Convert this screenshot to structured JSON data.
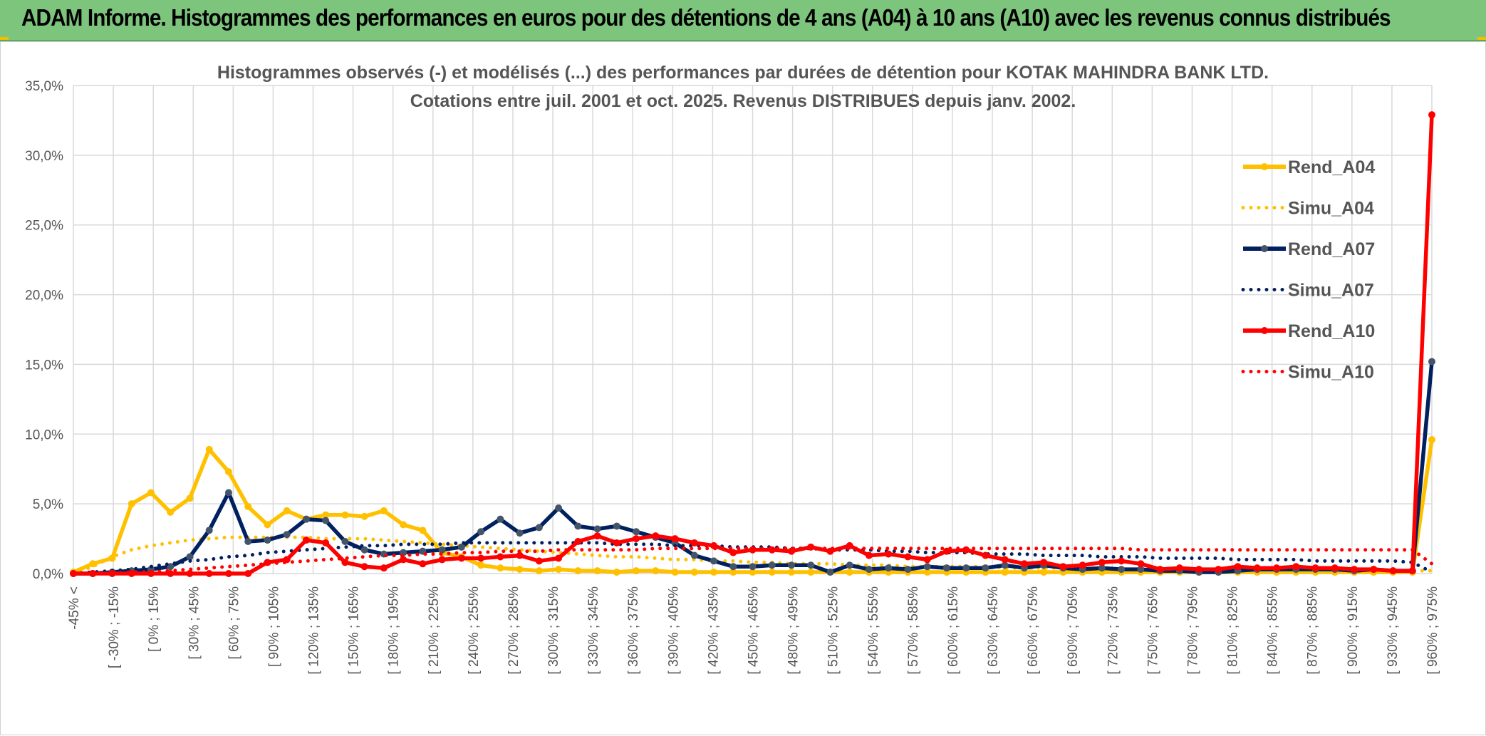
{
  "header": {
    "title": "ADAM Informe. Histogrammes des performances en euros pour des détentions de 4 ans (A04) à 10 ans (A10) avec les revenus connus distribués"
  },
  "chart_data": {
    "type": "line",
    "title": "Histogrammes observés (-) et modélisés (...) des performances par durées de détention pour KOTAK MAHINDRA BANK LTD.",
    "subtitle": "Cotations entre juil. 2001 et oct. 2025. Revenus DISTRIBUES depuis janv. 2002.",
    "ylim": [
      0,
      35
    ],
    "yticks": [
      "0,0%",
      "5,0%",
      "10,0%",
      "15,0%",
      "20,0%",
      "25,0%",
      "30,0%",
      "35,0%"
    ],
    "y_format": "percent",
    "grid": true,
    "legend_position": "right",
    "x_labels": [
      "-45% <",
      "[ -30% ; -15%",
      "[ 0% ; 15%",
      "[ 30% ; 45%",
      "[ 60% ; 75%",
      "[ 90% ; 105%",
      "[ 120% ; 135%",
      "[ 150% ; 165%",
      "[ 180% ; 195%",
      "[ 210% ; 225%",
      "[ 240% ; 255%",
      "[ 270% ; 285%",
      "[ 300% ; 315%",
      "[ 330% ; 345%",
      "[ 360% ; 375%",
      "[ 390% ; 405%",
      "[ 420% ; 435%",
      "[ 450% ; 465%",
      "[ 480% ; 495%",
      "[ 510% ; 525%",
      "[ 540% ; 555%",
      "[ 570% ; 585%",
      "[ 600% ; 615%",
      "[ 630% ; 645%",
      "[ 660% ; 675%",
      "[ 690% ; 705%",
      "[ 720% ; 735%",
      "[ 750% ; 765%",
      "[ 780% ; 795%",
      "[ 810% ; 825%",
      "[ 840% ; 855%",
      "[ 870% ; 885%",
      "[ 900% ; 915%",
      "[ 930% ; 945%",
      "[ 960% ; 975%"
    ],
    "series": [
      {
        "name": "Rend_A04",
        "style": "solid",
        "color": "#FFC000",
        "values": [
          0.1,
          0.7,
          1.1,
          5.0,
          5.8,
          4.4,
          5.4,
          8.9,
          7.3,
          4.8,
          3.5,
          4.5,
          3.9,
          4.2,
          4.2,
          4.1,
          4.5,
          3.5,
          3.1,
          1.5,
          1.2,
          0.6,
          0.4,
          0.3,
          0.2,
          0.3,
          0.2,
          0.2,
          0.1,
          0.2,
          0.2,
          0.1,
          0.1,
          0.1,
          0.1,
          0.1,
          0.1,
          0.1,
          0.1,
          0.1,
          0.1,
          0.1,
          0.1,
          0.1,
          0.1,
          0.1,
          0.1,
          0.1,
          0.1,
          0.1,
          0.1,
          0.1,
          0.1,
          0.1,
          0.1,
          0.1,
          0.1,
          0.1,
          0.1,
          0.1,
          0.1,
          0.1,
          0.1,
          0.1,
          0.1,
          0.1,
          0.1,
          0.1,
          0.1,
          0.1,
          9.6
        ]
      },
      {
        "name": "Simu_A04",
        "style": "dotted",
        "color": "#FFC000",
        "values": [
          0.0,
          0.5,
          1.2,
          1.7,
          2.0,
          2.2,
          2.4,
          2.5,
          2.6,
          2.6,
          2.6,
          2.6,
          2.6,
          2.5,
          2.5,
          2.5,
          2.4,
          2.3,
          2.2,
          2.1,
          2.0,
          1.9,
          1.8,
          1.7,
          1.6,
          1.5,
          1.4,
          1.3,
          1.2,
          1.2,
          1.1,
          1.0,
          1.0,
          0.9,
          0.9,
          0.8,
          0.8,
          0.7,
          0.7,
          0.7,
          0.6,
          0.6,
          0.6,
          0.5,
          0.5,
          0.5,
          0.5,
          0.5,
          0.4,
          0.4,
          0.4,
          0.4,
          0.4,
          0.4,
          0.3,
          0.3,
          0.3,
          0.3,
          0.3,
          0.3,
          0.3,
          0.3,
          0.3,
          0.3,
          0.3,
          0.2,
          0.2,
          0.2,
          0.2,
          0.2,
          0.2
        ]
      },
      {
        "name": "Rend_A07",
        "style": "solid",
        "color": "#002060",
        "values": [
          0.0,
          0.0,
          0.1,
          0.2,
          0.3,
          0.5,
          1.2,
          3.1,
          5.8,
          2.3,
          2.4,
          2.8,
          3.9,
          3.8,
          2.3,
          1.7,
          1.4,
          1.5,
          1.6,
          1.7,
          1.9,
          3.0,
          3.9,
          2.9,
          3.3,
          4.7,
          3.4,
          3.2,
          3.4,
          3.0,
          2.6,
          2.2,
          1.3,
          0.9,
          0.5,
          0.5,
          0.6,
          0.6,
          0.6,
          0.1,
          0.6,
          0.3,
          0.4,
          0.3,
          0.5,
          0.4,
          0.4,
          0.4,
          0.6,
          0.4,
          0.6,
          0.4,
          0.3,
          0.4,
          0.3,
          0.3,
          0.2,
          0.2,
          0.1,
          0.1,
          0.2,
          0.3,
          0.3,
          0.3,
          0.3,
          0.3,
          0.2,
          0.3,
          0.2,
          0.2,
          15.2
        ]
      },
      {
        "name": "Simu_A07",
        "style": "dotted",
        "color": "#002060",
        "values": [
          0.0,
          0.1,
          0.2,
          0.3,
          0.5,
          0.7,
          0.9,
          1.0,
          1.2,
          1.3,
          1.5,
          1.6,
          1.7,
          1.8,
          1.9,
          2.0,
          2.0,
          2.1,
          2.1,
          2.1,
          2.2,
          2.2,
          2.2,
          2.2,
          2.2,
          2.2,
          2.2,
          2.2,
          2.1,
          2.1,
          2.1,
          2.0,
          2.0,
          2.0,
          1.9,
          1.9,
          1.9,
          1.8,
          1.8,
          1.7,
          1.7,
          1.7,
          1.6,
          1.6,
          1.5,
          1.5,
          1.5,
          1.4,
          1.4,
          1.4,
          1.3,
          1.3,
          1.3,
          1.2,
          1.2,
          1.2,
          1.1,
          1.1,
          1.1,
          1.1,
          1.0,
          1.0,
          1.0,
          1.0,
          0.9,
          0.9,
          0.9,
          0.9,
          0.9,
          0.8,
          0.1
        ]
      },
      {
        "name": "Rend_A10",
        "style": "solid",
        "color": "#FF0000",
        "values": [
          0.0,
          0.0,
          0.0,
          0.0,
          0.0,
          0.0,
          0.0,
          0.0,
          0.0,
          0.0,
          0.8,
          1.0,
          2.4,
          2.2,
          0.8,
          0.5,
          0.4,
          1.0,
          0.7,
          1.0,
          1.1,
          1.1,
          1.2,
          1.3,
          0.9,
          1.1,
          2.3,
          2.7,
          2.2,
          2.5,
          2.7,
          2.5,
          2.2,
          2.0,
          1.5,
          1.7,
          1.7,
          1.6,
          1.9,
          1.6,
          2.0,
          1.3,
          1.4,
          1.2,
          1.0,
          1.6,
          1.7,
          1.3,
          1.0,
          0.7,
          0.8,
          0.5,
          0.6,
          0.8,
          0.9,
          0.7,
          0.3,
          0.4,
          0.3,
          0.3,
          0.5,
          0.4,
          0.4,
          0.5,
          0.4,
          0.4,
          0.3,
          0.3,
          0.2,
          0.2,
          32.9
        ]
      },
      {
        "name": "Simu_A10",
        "style": "dotted",
        "color": "#FF0000",
        "values": [
          0.0,
          0.0,
          0.0,
          0.1,
          0.1,
          0.2,
          0.3,
          0.4,
          0.5,
          0.6,
          0.7,
          0.8,
          0.9,
          1.0,
          1.1,
          1.2,
          1.3,
          1.3,
          1.4,
          1.4,
          1.5,
          1.5,
          1.6,
          1.6,
          1.6,
          1.7,
          1.7,
          1.7,
          1.7,
          1.7,
          1.8,
          1.8,
          1.8,
          1.8,
          1.8,
          1.8,
          1.8,
          1.8,
          1.8,
          1.8,
          1.8,
          1.8,
          1.8,
          1.8,
          1.8,
          1.8,
          1.8,
          1.8,
          1.8,
          1.8,
          1.8,
          1.8,
          1.8,
          1.8,
          1.8,
          1.7,
          1.7,
          1.7,
          1.7,
          1.7,
          1.7,
          1.7,
          1.7,
          1.7,
          1.7,
          1.7,
          1.7,
          1.7,
          1.7,
          1.7,
          0.7
        ]
      }
    ]
  }
}
